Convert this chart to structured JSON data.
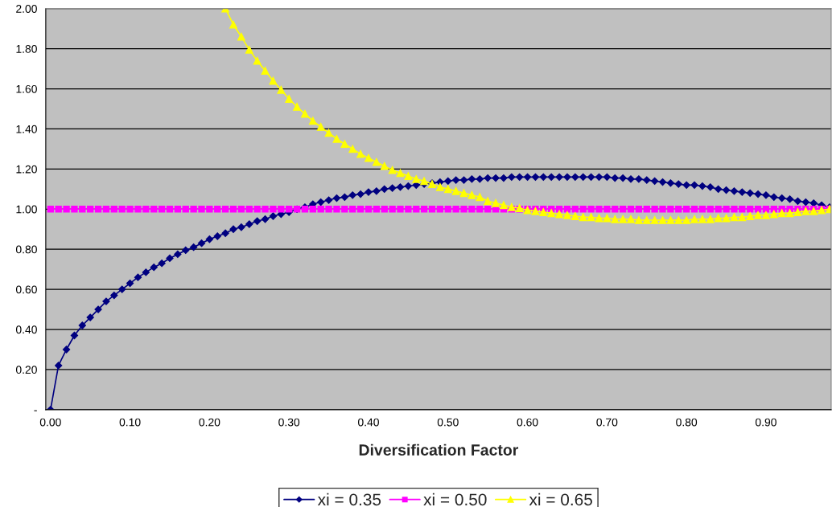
{
  "chart_data": {
    "type": "line",
    "xlabel": "Diversification Factor",
    "x": [
      0.0,
      0.01,
      0.02,
      0.03,
      0.04,
      0.05,
      0.06,
      0.07,
      0.08,
      0.09,
      0.1,
      0.11,
      0.12,
      0.13,
      0.14,
      0.15,
      0.16,
      0.17,
      0.18,
      0.19,
      0.2,
      0.21,
      0.22,
      0.23,
      0.24,
      0.25,
      0.26,
      0.27,
      0.28,
      0.29,
      0.3,
      0.31,
      0.32,
      0.33,
      0.34,
      0.35,
      0.36,
      0.37,
      0.38,
      0.39,
      0.4,
      0.41,
      0.42,
      0.43,
      0.44,
      0.45,
      0.46,
      0.47,
      0.48,
      0.49,
      0.5,
      0.51,
      0.52,
      0.53,
      0.54,
      0.55,
      0.56,
      0.57,
      0.58,
      0.59,
      0.6,
      0.61,
      0.62,
      0.63,
      0.64,
      0.65,
      0.66,
      0.67,
      0.68,
      0.69,
      0.7,
      0.71,
      0.72,
      0.73,
      0.74,
      0.75,
      0.76,
      0.77,
      0.78,
      0.79,
      0.8,
      0.81,
      0.82,
      0.83,
      0.84,
      0.85,
      0.86,
      0.87,
      0.88,
      0.89,
      0.9,
      0.91,
      0.92,
      0.93,
      0.94,
      0.95,
      0.96,
      0.97,
      0.98
    ],
    "series": [
      {
        "name": "xi = 0.35",
        "color": "#000080",
        "marker": "diamond",
        "values": [
          0,
          0.22,
          0.3,
          0.37,
          0.42,
          0.46,
          0.5,
          0.54,
          0.57,
          0.6,
          0.63,
          0.66,
          0.685,
          0.71,
          0.73,
          0.755,
          0.775,
          0.795,
          0.81,
          0.83,
          0.85,
          0.865,
          0.88,
          0.9,
          0.91,
          0.925,
          0.94,
          0.95,
          0.965,
          0.975,
          0.985,
          1.0,
          1.01,
          1.025,
          1.035,
          1.045,
          1.055,
          1.06,
          1.07,
          1.075,
          1.085,
          1.09,
          1.1,
          1.105,
          1.11,
          1.115,
          1.12,
          1.125,
          1.13,
          1.135,
          1.14,
          1.145,
          1.145,
          1.15,
          1.15,
          1.155,
          1.155,
          1.155,
          1.16,
          1.16,
          1.16,
          1.16,
          1.16,
          1.16,
          1.16,
          1.16,
          1.16,
          1.16,
          1.16,
          1.16,
          1.16,
          1.155,
          1.155,
          1.15,
          1.15,
          1.145,
          1.14,
          1.135,
          1.13,
          1.125,
          1.12,
          1.12,
          1.115,
          1.11,
          1.1,
          1.095,
          1.09,
          1.085,
          1.08,
          1.075,
          1.07,
          1.06,
          1.055,
          1.05,
          1.04,
          1.035,
          1.03,
          1.02,
          1.01
        ]
      },
      {
        "name": "xi = 0.50",
        "color": "#ff00ff",
        "marker": "square",
        "values": [
          1,
          1,
          1,
          1,
          1,
          1,
          1,
          1,
          1,
          1,
          1,
          1,
          1,
          1,
          1,
          1,
          1,
          1,
          1,
          1,
          1,
          1,
          1,
          1,
          1,
          1,
          1,
          1,
          1,
          1,
          1,
          1,
          1,
          1,
          1,
          1,
          1,
          1,
          1,
          1,
          1,
          1,
          1,
          1,
          1,
          1,
          1,
          1,
          1,
          1,
          1,
          1,
          1,
          1,
          1,
          1,
          1,
          1,
          1,
          1,
          1,
          1,
          1,
          1,
          1,
          1,
          1,
          1,
          1,
          1,
          1,
          1,
          1,
          1,
          1,
          1,
          1,
          1,
          1,
          1,
          1,
          1,
          1,
          1,
          1,
          1,
          1,
          1,
          1,
          1,
          1,
          1,
          1,
          1,
          1,
          1,
          1,
          1,
          1
        ]
      },
      {
        "name": "xi = 0.65",
        "color": "#ffff00",
        "marker": "triangle",
        "values": [
          null,
          null,
          null,
          null,
          null,
          null,
          null,
          null,
          null,
          null,
          null,
          null,
          null,
          null,
          null,
          null,
          null,
          null,
          null,
          null,
          null,
          null,
          2.0,
          1.92,
          1.86,
          1.795,
          1.74,
          1.69,
          1.64,
          1.595,
          1.55,
          1.51,
          1.475,
          1.44,
          1.41,
          1.38,
          1.35,
          1.325,
          1.3,
          1.275,
          1.255,
          1.235,
          1.215,
          1.195,
          1.18,
          1.165,
          1.15,
          1.14,
          1.125,
          1.11,
          1.1,
          1.09,
          1.08,
          1.07,
          1.06,
          1.04,
          1.03,
          1.02,
          1.01,
          1.005,
          0.995,
          0.99,
          0.985,
          0.98,
          0.975,
          0.97,
          0.965,
          0.96,
          0.96,
          0.955,
          0.955,
          0.95,
          0.95,
          0.95,
          0.945,
          0.945,
          0.945,
          0.945,
          0.945,
          0.945,
          0.945,
          0.95,
          0.95,
          0.95,
          0.955,
          0.955,
          0.96,
          0.96,
          0.965,
          0.97,
          0.97,
          0.975,
          0.98,
          0.98,
          0.985,
          0.99,
          0.99,
          0.995,
          1.0
        ]
      }
    ],
    "xlim": [
      -0.006,
      0.982
    ],
    "xticks": [
      {
        "value": 0,
        "label": "0.00"
      },
      {
        "value": 0.1,
        "label": "0.10"
      },
      {
        "value": 0.2,
        "label": "0.20"
      },
      {
        "value": 0.3,
        "label": "0.30"
      },
      {
        "value": 0.4,
        "label": "0.40"
      },
      {
        "value": 0.5,
        "label": "0.50"
      },
      {
        "value": 0.6,
        "label": "0.60"
      },
      {
        "value": 0.7,
        "label": "0.70"
      },
      {
        "value": 0.8,
        "label": "0.80"
      },
      {
        "value": 0.9,
        "label": "0.90"
      }
    ],
    "ylim": [
      0,
      2
    ],
    "yticks": [
      {
        "value": 0,
        "label": "-"
      },
      {
        "value": 0.2,
        "label": "0.20"
      },
      {
        "value": 0.4,
        "label": "0.40"
      },
      {
        "value": 0.6,
        "label": "0.60"
      },
      {
        "value": 0.8,
        "label": "0.80"
      },
      {
        "value": 1.0,
        "label": "1.00"
      },
      {
        "value": 1.2,
        "label": "1.20"
      },
      {
        "value": 1.4,
        "label": "1.40"
      },
      {
        "value": 1.6,
        "label": "1.60"
      },
      {
        "value": 1.8,
        "label": "1.80"
      },
      {
        "value": 2.0,
        "label": "2.00"
      }
    ],
    "grid": "y",
    "legend": "bottom"
  }
}
